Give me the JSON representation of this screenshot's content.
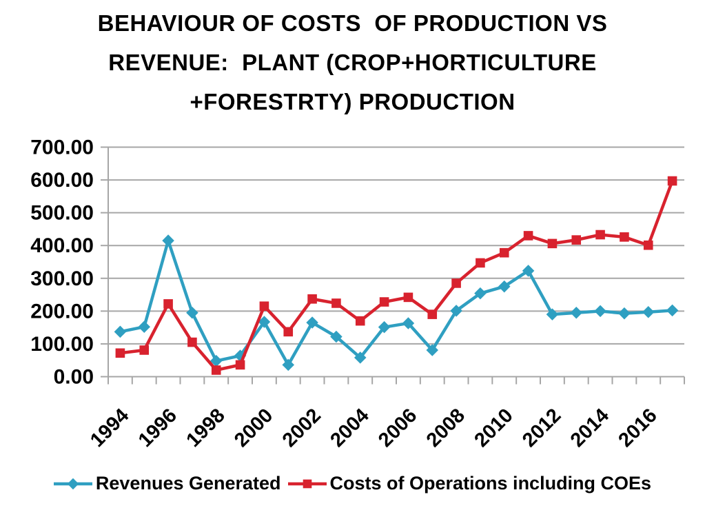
{
  "title": {
    "text": "BEHAVIOUR OF COSTS  OF PRODUCTION VS\nREVENUE:  PLANT (CROP+HORTICULTURE\n+FORESTRTY) PRODUCTION"
  },
  "chart_data": {
    "type": "line",
    "x": [
      1994,
      1995,
      1996,
      1997,
      1998,
      1999,
      2000,
      2001,
      2002,
      2003,
      2004,
      2005,
      2006,
      2007,
      2008,
      2009,
      2010,
      2011,
      2012,
      2013,
      2014,
      2015,
      2016,
      2017
    ],
    "series": [
      {
        "name": "Revenues Generated",
        "color": "#2F9FC1",
        "marker": "diamond",
        "values": [
          137,
          152,
          415,
          195,
          48,
          64,
          167,
          36,
          165,
          122,
          58,
          151,
          163,
          81,
          201,
          254,
          275,
          323,
          190,
          195,
          200,
          193,
          197,
          202
        ]
      },
      {
        "name": "Costs of Operations including COEs",
        "color": "#D8222E",
        "marker": "square",
        "values": [
          72,
          81,
          222,
          105,
          20,
          36,
          215,
          137,
          237,
          224,
          170,
          228,
          242,
          190,
          285,
          347,
          378,
          430,
          406,
          417,
          433,
          426,
          401,
          597
        ]
      }
    ],
    "ylim": [
      0,
      700
    ],
    "yticks": [
      0,
      100,
      200,
      300,
      400,
      500,
      600,
      700
    ],
    "ytick_format": "two-decimal",
    "ytick_labels": [
      "0.00",
      "100.00",
      "200.00",
      "300.00",
      "400.00",
      "500.00",
      "600.00",
      "700.00"
    ],
    "xtick_labels": [
      "1994",
      "1996",
      "1998",
      "2000",
      "2002",
      "2004",
      "2006",
      "2008",
      "2010",
      "2012",
      "2014",
      "2016"
    ],
    "xtick_label_every": 2,
    "grid": "horizontal",
    "grid_color": "#A6A6A6",
    "text_color": "#000000",
    "legend_position": "bottom"
  }
}
